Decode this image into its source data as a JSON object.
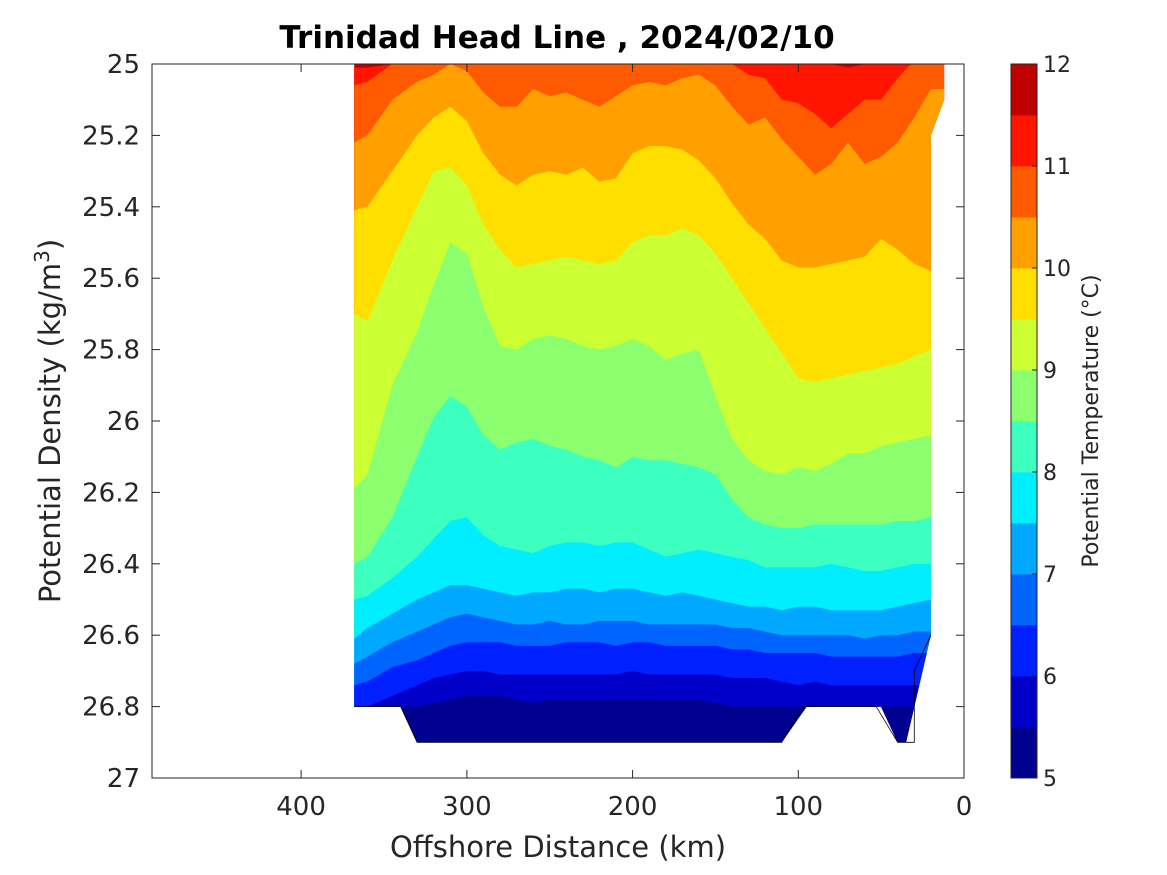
{
  "chart_data": {
    "type": "filled-contour",
    "title": "Trinidad Head Line , 2024/02/10",
    "xlabel": "Offshore Distance (km)",
    "ylabel_main": "Potential Density (kg/m",
    "ylabel_sup": "3",
    "ylabel_close": ")",
    "x_reversed": true,
    "xlim": [
      490,
      0
    ],
    "ylim": [
      25,
      27
    ],
    "y_reversed": true,
    "xticks": [
      "400",
      "300",
      "200",
      "100",
      "0"
    ],
    "xtick_values": [
      400,
      300,
      200,
      100,
      0
    ],
    "yticks": [
      "25",
      "25.2",
      "25.4",
      "25.6",
      "25.8",
      "26",
      "26.2",
      "26.4",
      "26.6",
      "26.8",
      "27"
    ],
    "ytick_values": [
      25,
      25.2,
      25.4,
      25.6,
      25.8,
      26,
      26.2,
      26.4,
      26.6,
      26.8,
      27
    ],
    "colorbar": {
      "label": "Potential Temperature (°C)",
      "range": [
        5,
        12
      ],
      "ticks": [
        "5",
        "6",
        "7",
        "8",
        "9",
        "10",
        "11",
        "12"
      ],
      "tick_values": [
        5,
        6,
        7,
        8,
        9,
        10,
        11,
        12
      ],
      "level_step": 0.5,
      "colors": [
        "#00008F",
        "#0000C8",
        "#0020FF",
        "#0064FF",
        "#00A8FF",
        "#00EEFF",
        "#3CFFC0",
        "#8CFF6E",
        "#CCFF33",
        "#FFDF00",
        "#FF9F00",
        "#FF5A00",
        "#FF1500",
        "#BF0000"
      ]
    },
    "x_grid_km": [
      368,
      360,
      345,
      330,
      320,
      310,
      300,
      290,
      280,
      270,
      260,
      250,
      240,
      230,
      220,
      210,
      200,
      190,
      180,
      170,
      160,
      150,
      140,
      130,
      120,
      110,
      100,
      90,
      80,
      70,
      60,
      50,
      40,
      30,
      20
    ],
    "isotherms": [
      {
        "t": 11.5,
        "y": [
          25.01,
          25.01,
          25.0,
          24.99,
          24.99,
          24.99,
          24.99,
          24.99,
          24.99,
          24.99,
          24.99,
          24.99,
          24.99,
          24.99,
          24.99,
          24.99,
          24.99,
          24.99,
          24.99,
          24.99,
          24.99,
          24.99,
          24.99,
          24.99,
          24.99,
          24.99,
          24.99,
          24.99,
          25.0,
          25.01,
          25.0,
          24.99,
          24.99,
          24.99,
          24.99
        ]
      },
      {
        "t": 11.0,
        "y": [
          25.06,
          25.05,
          25.0,
          24.99,
          24.99,
          24.99,
          24.99,
          24.99,
          24.99,
          24.99,
          24.99,
          24.99,
          24.99,
          24.99,
          24.99,
          24.99,
          24.99,
          24.99,
          24.99,
          24.99,
          24.99,
          25.0,
          25.0,
          25.03,
          25.04,
          25.1,
          25.11,
          25.14,
          25.18,
          25.14,
          25.1,
          25.1,
          25.04,
          24.99,
          24.99
        ]
      },
      {
        "t": 10.5,
        "y": [
          25.22,
          25.2,
          25.1,
          25.05,
          25.03,
          25.0,
          25.02,
          25.08,
          25.12,
          25.12,
          25.07,
          25.09,
          25.08,
          25.1,
          25.12,
          25.09,
          25.06,
          25.05,
          25.06,
          25.04,
          25.03,
          25.06,
          25.12,
          25.17,
          25.15,
          25.21,
          25.26,
          25.31,
          25.28,
          25.22,
          25.28,
          25.26,
          25.22,
          25.15,
          25.07
        ]
      },
      {
        "t": 10.0,
        "y": [
          25.41,
          25.4,
          25.3,
          25.2,
          25.15,
          25.12,
          25.16,
          25.25,
          25.31,
          25.34,
          25.31,
          25.3,
          25.31,
          25.29,
          25.33,
          25.32,
          25.25,
          25.23,
          25.23,
          25.24,
          25.27,
          25.32,
          25.39,
          25.45,
          25.49,
          25.55,
          25.57,
          25.57,
          25.56,
          25.55,
          25.54,
          25.49,
          25.52,
          25.56,
          25.58
        ]
      },
      {
        "t": 9.5,
        "y": [
          25.7,
          25.72,
          25.55,
          25.4,
          25.3,
          25.29,
          25.34,
          25.45,
          25.52,
          25.57,
          25.56,
          25.55,
          25.54,
          25.55,
          25.56,
          25.55,
          25.5,
          25.48,
          25.48,
          25.46,
          25.48,
          25.53,
          25.6,
          25.67,
          25.74,
          25.81,
          25.88,
          25.89,
          25.88,
          25.87,
          25.86,
          25.85,
          25.84,
          25.82,
          25.8
        ]
      },
      {
        "t": 9.0,
        "y": [
          26.19,
          26.15,
          25.9,
          25.75,
          25.62,
          25.5,
          25.53,
          25.68,
          25.79,
          25.8,
          25.77,
          25.76,
          25.77,
          25.79,
          25.8,
          25.79,
          25.77,
          25.79,
          25.83,
          25.81,
          25.8,
          25.93,
          26.05,
          26.11,
          26.14,
          26.15,
          26.13,
          26.14,
          26.12,
          26.09,
          26.09,
          26.07,
          26.06,
          26.05,
          26.04
        ]
      },
      {
        "t": 8.5,
        "y": [
          26.4,
          26.38,
          26.27,
          26.1,
          25.99,
          25.93,
          25.96,
          26.04,
          26.08,
          26.06,
          26.05,
          26.07,
          26.08,
          26.1,
          26.11,
          26.13,
          26.1,
          26.11,
          26.11,
          26.12,
          26.13,
          26.15,
          26.22,
          26.27,
          26.29,
          26.3,
          26.3,
          26.29,
          26.29,
          26.29,
          26.29,
          26.29,
          26.28,
          26.28,
          26.27
        ]
      },
      {
        "t": 8.0,
        "y": [
          26.5,
          26.49,
          26.44,
          26.38,
          26.33,
          26.28,
          26.27,
          26.32,
          26.35,
          26.36,
          26.37,
          26.35,
          26.34,
          26.34,
          26.35,
          26.34,
          26.34,
          26.36,
          26.38,
          26.37,
          26.36,
          26.37,
          26.38,
          26.39,
          26.41,
          26.41,
          26.41,
          26.41,
          26.4,
          26.41,
          26.42,
          26.42,
          26.41,
          26.4,
          26.4
        ]
      },
      {
        "t": 7.5,
        "y": [
          26.61,
          26.58,
          26.54,
          26.5,
          26.48,
          26.46,
          26.46,
          26.47,
          26.48,
          26.49,
          26.48,
          26.48,
          26.47,
          26.47,
          26.48,
          26.47,
          26.47,
          26.48,
          26.49,
          26.48,
          26.49,
          26.5,
          26.51,
          26.52,
          26.52,
          26.53,
          26.52,
          26.52,
          26.53,
          26.53,
          26.53,
          26.53,
          26.52,
          26.51,
          26.5
        ]
      },
      {
        "t": 7.0,
        "y": [
          26.68,
          26.66,
          26.62,
          26.59,
          26.57,
          26.55,
          26.54,
          26.55,
          26.56,
          26.57,
          26.57,
          26.56,
          26.57,
          26.57,
          26.56,
          26.56,
          26.56,
          26.57,
          26.57,
          26.57,
          26.57,
          26.57,
          26.58,
          26.58,
          26.59,
          26.6,
          26.6,
          26.6,
          26.6,
          26.6,
          26.61,
          26.6,
          26.6,
          26.59,
          26.59
        ]
      },
      {
        "t": 6.5,
        "y": [
          26.74,
          26.73,
          26.69,
          26.67,
          26.65,
          26.63,
          26.62,
          26.62,
          26.62,
          26.63,
          26.63,
          26.63,
          26.62,
          26.62,
          26.62,
          26.63,
          26.62,
          26.62,
          26.63,
          26.63,
          26.63,
          26.63,
          26.64,
          26.64,
          26.65,
          26.65,
          26.65,
          26.65,
          26.66,
          26.66,
          26.66,
          26.66,
          26.66,
          26.65,
          26.65
        ]
      },
      {
        "t": 6.0,
        "y": [
          26.8,
          26.8,
          26.77,
          26.74,
          26.72,
          26.71,
          26.7,
          26.7,
          26.71,
          26.71,
          26.71,
          26.71,
          26.71,
          26.71,
          26.71,
          26.71,
          26.7,
          26.71,
          26.71,
          26.71,
          26.71,
          26.71,
          26.72,
          26.72,
          26.72,
          26.73,
          26.74,
          26.73,
          26.74,
          26.74,
          26.74,
          26.74,
          26.74,
          26.74,
          26.74
        ]
      },
      {
        "t": 5.5,
        "y": [
          26.8,
          26.8,
          26.8,
          26.8,
          26.79,
          26.78,
          26.77,
          26.77,
          26.77,
          26.78,
          26.79,
          26.78,
          26.78,
          26.78,
          26.78,
          26.78,
          26.78,
          26.78,
          26.78,
          26.78,
          26.78,
          26.79,
          26.8,
          26.8,
          26.8,
          26.8,
          26.8,
          26.8,
          26.8,
          26.8,
          26.8,
          26.8,
          26.8,
          26.8,
          26.8
        ]
      },
      {
        "t": 5.0,
        "y": [
          26.8,
          26.8,
          26.8,
          26.8,
          26.89,
          26.87,
          26.86,
          26.86,
          26.86,
          26.87,
          26.87,
          26.87,
          26.87,
          26.87,
          26.86,
          26.86,
          26.86,
          26.86,
          26.86,
          26.85,
          26.85,
          26.86,
          26.87,
          26.9,
          26.9,
          26.9,
          26.8,
          26.8,
          26.8,
          26.8,
          26.8,
          26.8,
          26.8,
          26.8,
          26.8
        ]
      }
    ],
    "data_outline": {
      "x": [
        368,
        368,
        340,
        330,
        110,
        95,
        90,
        50,
        40,
        35,
        30,
        20,
        20,
        12,
        12
      ],
      "y": [
        25.0,
        26.8,
        26.8,
        26.9,
        26.9,
        26.8,
        26.8,
        26.8,
        26.9,
        26.9,
        26.8,
        26.6,
        25.2,
        25.1,
        25.0
      ]
    },
    "bottom_profile": {
      "x": [
        368,
        340,
        330,
        110,
        97,
        53,
        40,
        30,
        30,
        20
      ],
      "y": [
        26.8,
        26.8,
        26.9,
        26.9,
        26.8,
        26.8,
        26.9,
        26.9,
        26.7,
        26.6
      ]
    }
  }
}
